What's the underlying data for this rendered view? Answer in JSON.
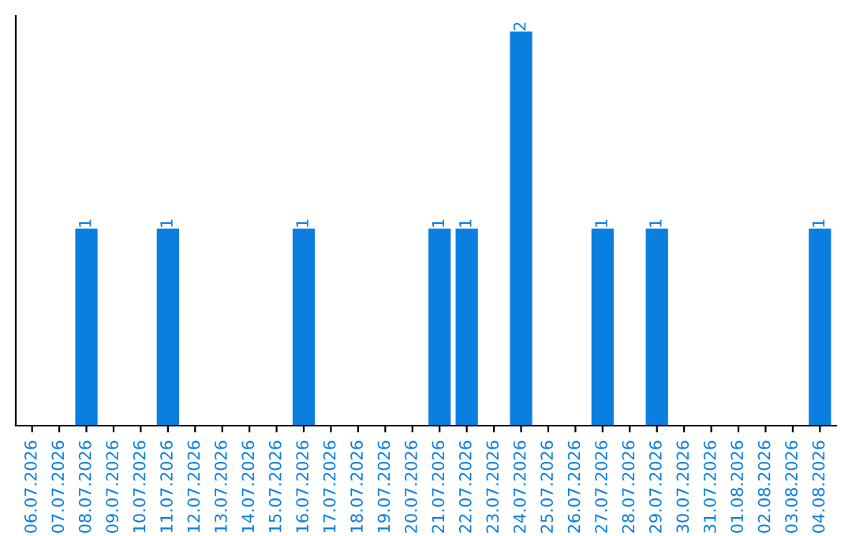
{
  "chart_data": {
    "type": "bar",
    "categories": [
      "06.07.2026",
      "07.07.2026",
      "08.07.2026",
      "09.07.2026",
      "10.07.2026",
      "11.07.2026",
      "12.07.2026",
      "13.07.2026",
      "14.07.2026",
      "15.07.2026",
      "16.07.2026",
      "17.07.2026",
      "18.07.2026",
      "19.07.2026",
      "20.07.2026",
      "21.07.2026",
      "22.07.2026",
      "23.07.2026",
      "24.07.2026",
      "25.07.2026",
      "26.07.2026",
      "27.07.2026",
      "28.07.2026",
      "29.07.2026",
      "30.07.2026",
      "31.07.2026",
      "01.08.2026",
      "02.08.2026",
      "03.08.2026",
      "04.08.2026"
    ],
    "values": [
      0,
      0,
      1,
      0,
      0,
      1,
      0,
      0,
      0,
      0,
      1,
      0,
      0,
      0,
      0,
      1,
      1,
      0,
      2,
      0,
      0,
      1,
      0,
      1,
      0,
      0,
      0,
      0,
      0,
      1
    ],
    "value_labels": [
      null,
      null,
      "1",
      null,
      null,
      "1",
      null,
      null,
      null,
      null,
      "1",
      null,
      null,
      null,
      null,
      "1",
      "1",
      null,
      "2",
      null,
      null,
      "1",
      null,
      "1",
      null,
      null,
      null,
      null,
      null,
      "1"
    ],
    "color": "#0a7fe0",
    "tick_labels": "x",
    "grid": false,
    "legend": false
  }
}
